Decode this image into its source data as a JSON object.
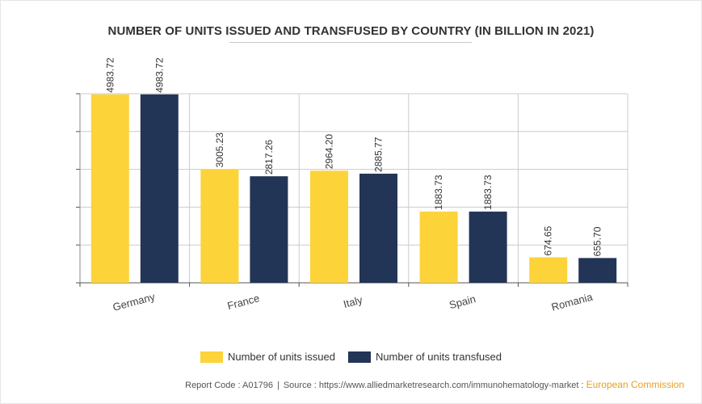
{
  "chart_data": {
    "type": "bar",
    "title": "NUMBER OF UNITS ISSUED AND TRANSFUSED BY COUNTRY (IN BILLION IN 2021)",
    "categories": [
      "Germany",
      "France",
      "Italy",
      "Spain",
      "Romania"
    ],
    "series": [
      {
        "name": "Number of units issued",
        "color": "#fdd33a",
        "values": [
          4983.72,
          3005.23,
          2964.2,
          1883.73,
          674.65
        ]
      },
      {
        "name": "Number of units transfused",
        "color": "#233556",
        "values": [
          4983.72,
          2817.26,
          2885.77,
          1883.73,
          655.7
        ]
      }
    ],
    "value_labels": [
      [
        "4983.72",
        "3005.23",
        "2964.20",
        "1883.73",
        "674.65"
      ],
      [
        "4983.72",
        "2817.26",
        "2885.77",
        "1883.73",
        "655.70"
      ]
    ],
    "ylim": [
      0,
      5000
    ],
    "xlabel": "",
    "ylabel": "",
    "grid": true,
    "legend_position": "bottom-center"
  },
  "footer": {
    "report_code": "Report Code : A01796",
    "separator": "|",
    "source": "Source : https://www.alliedmarketresearch.com/immunohematology-market :",
    "brand": "European Commission"
  }
}
